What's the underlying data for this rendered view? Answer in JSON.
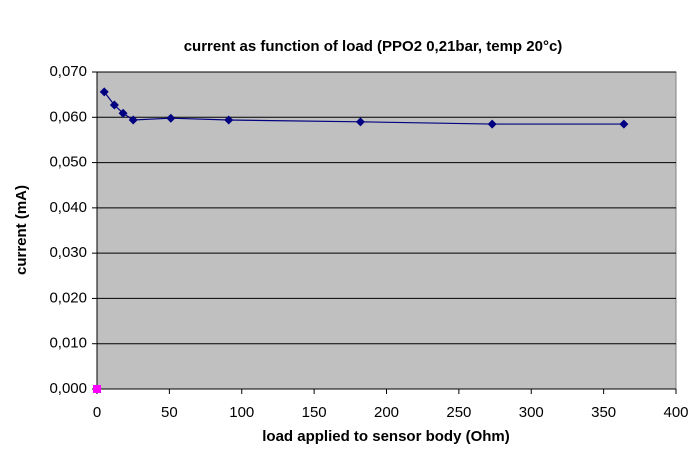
{
  "chart_data": {
    "type": "scatter",
    "title": "current as function of load (PPO2 0,21bar, temp 20°c)",
    "x_label": "load applied to sensor body (Ohm)",
    "y_label": "current (mA)",
    "xlim": [
      0,
      400
    ],
    "xticks": [
      0,
      50,
      100,
      150,
      200,
      250,
      300,
      350,
      400
    ],
    "ylim": [
      0,
      0.07
    ],
    "yticks": [
      {
        "value": 0,
        "label": "0,000"
      },
      {
        "value": 0.01,
        "label": "0,010"
      },
      {
        "value": 0.02,
        "label": "0,020"
      },
      {
        "value": 0.03,
        "label": "0,030"
      },
      {
        "value": 0.04,
        "label": "0,040"
      },
      {
        "value": 0.05,
        "label": "0,050"
      },
      {
        "value": 0.06,
        "label": "0,060"
      },
      {
        "value": 0.07,
        "label": "0,070"
      }
    ],
    "grid": true,
    "background": "#c0c0c0",
    "series": [
      {
        "color": "#000080",
        "marker": "diamond",
        "line": true,
        "x": [
          5,
          12,
          18,
          25,
          51,
          91,
          182,
          273,
          364
        ],
        "values": [
          0.0656,
          0.0627,
          0.0609,
          0.0594,
          0.0598,
          0.0594,
          0.059,
          0.0585,
          0.0585
        ]
      },
      {
        "color": "#ff00ff",
        "marker": "square",
        "line": false,
        "x": [
          0
        ],
        "values": [
          0
        ]
      }
    ]
  }
}
